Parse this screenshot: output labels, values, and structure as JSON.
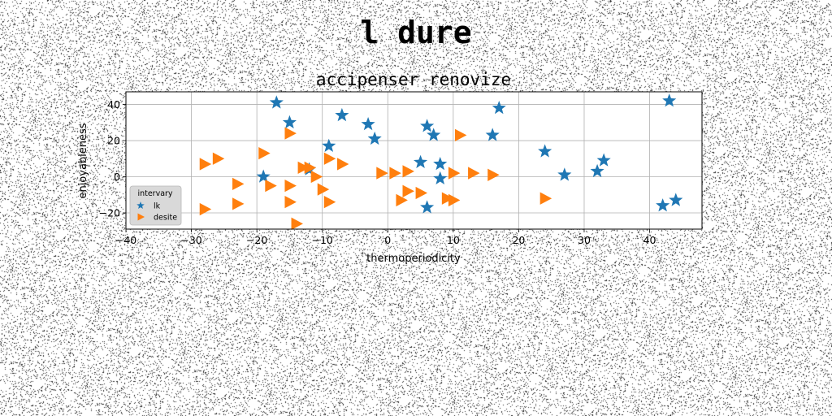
{
  "figure": {
    "suptitle": "l dure"
  },
  "chart_data": {
    "type": "scatter",
    "title": "accipenser renovize",
    "xlabel": "thermoperiodicity",
    "ylabel": "enjoyableness",
    "xlim": [
      -40,
      48
    ],
    "ylim": [
      -29,
      47
    ],
    "xticks": [
      -40,
      -30,
      -20,
      -10,
      0,
      10,
      20,
      30,
      40
    ],
    "yticks": [
      -20,
      0,
      20,
      40
    ],
    "grid": true,
    "legend": {
      "title": "intervary",
      "placement": "lower-left"
    },
    "series": [
      {
        "name": "lk",
        "marker": "star",
        "color": "#1f77b4",
        "points": [
          [
            -17,
            41
          ],
          [
            -15,
            30
          ],
          [
            -7,
            34
          ],
          [
            -3,
            29
          ],
          [
            -2,
            21
          ],
          [
            -9,
            17
          ],
          [
            -12,
            4
          ],
          [
            -19,
            0
          ],
          [
            6,
            28
          ],
          [
            7,
            23
          ],
          [
            5,
            8
          ],
          [
            8,
            7
          ],
          [
            8,
            -1
          ],
          [
            6,
            -17
          ],
          [
            16,
            23
          ],
          [
            17,
            38
          ],
          [
            24,
            14
          ],
          [
            27,
            1
          ],
          [
            32,
            3
          ],
          [
            33,
            9
          ],
          [
            43,
            42
          ],
          [
            42,
            -16
          ],
          [
            44,
            -13
          ]
        ]
      },
      {
        "name": "desite",
        "marker": "triangle-right",
        "color": "#ff7f0e",
        "points": [
          [
            -15,
            24
          ],
          [
            -19,
            13
          ],
          [
            -26,
            10
          ],
          [
            -28,
            7
          ],
          [
            -23,
            -4
          ],
          [
            -18,
            -5
          ],
          [
            -15,
            -5
          ],
          [
            -28,
            -18
          ],
          [
            -23,
            -15
          ],
          [
            -15,
            -14
          ],
          [
            -14,
            -26
          ],
          [
            -13,
            5
          ],
          [
            -12,
            5
          ],
          [
            -11,
            0
          ],
          [
            -10,
            -7
          ],
          [
            -9,
            10
          ],
          [
            -7,
            7
          ],
          [
            -9,
            -14
          ],
          [
            -1,
            2
          ],
          [
            1,
            2
          ],
          [
            3,
            3
          ],
          [
            3,
            -8
          ],
          [
            2,
            -13
          ],
          [
            5,
            -9
          ],
          [
            9,
            -12
          ],
          [
            10,
            -13
          ],
          [
            10,
            2
          ],
          [
            11,
            23
          ],
          [
            13,
            2
          ],
          [
            16,
            1
          ],
          [
            24,
            -12
          ]
        ]
      }
    ]
  }
}
